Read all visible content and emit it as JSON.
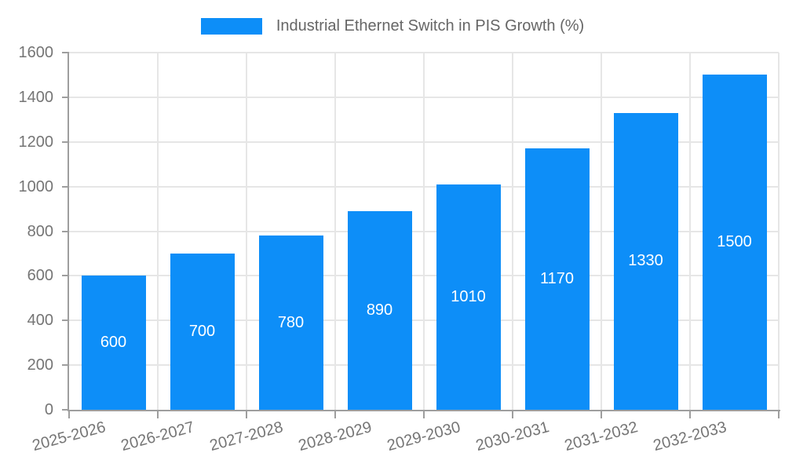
{
  "chart_data": {
    "type": "bar",
    "title": "",
    "legend_label": "Industrial Ethernet Switch in PIS Growth (%)",
    "legend_position": "top-center",
    "categories": [
      "2025-2026",
      "2026-2027",
      "2027-2028",
      "2028-2029",
      "2029-2030",
      "2030-2031",
      "2031-2032",
      "2032-2033"
    ],
    "values": [
      600,
      700,
      780,
      890,
      1010,
      1170,
      1330,
      1500
    ],
    "xlabel": "",
    "ylabel": "",
    "ylim": [
      0,
      1600
    ],
    "yticks": [
      0,
      200,
      400,
      600,
      800,
      1000,
      1200,
      1400,
      1600
    ],
    "grid": true,
    "bar_color": "#0d8ef8",
    "value_label_color": "#ffffff"
  },
  "colors": {
    "bar": "#0d8ef8",
    "axis_line": "#9e9e9e",
    "gridline": "#e6e6e6",
    "tick_text": "#757575",
    "legend_text": "#666666",
    "background": "#ffffff"
  }
}
